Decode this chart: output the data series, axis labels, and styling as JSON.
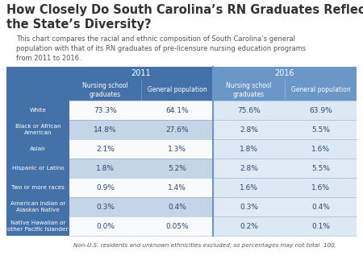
{
  "title": "How Closely Do South Carolina’s RN Graduates Reflect\nthe State’s Diversity?",
  "subtitle": "This chart compares the racial and ethnic composition of South Carolina’s general\npopulation with that of its RN graduates of pre-licensure nursing education programs\nfrom 2011 to 2016.",
  "footnote": "Non-U.S. residents and unknown ethnicities excluded, so percentages may not total  100.",
  "col_headers_year": [
    "2011",
    "2016"
  ],
  "col_headers_sub": [
    "Nursing school\ngraduates",
    "General population",
    "Nursing school\ngraduates",
    "General population"
  ],
  "row_labels": [
    "White",
    "Black or African\nAmerican",
    "Asian",
    "Hispanic or Latino",
    "Two or more races",
    "American Indian or\nAlaskan Native",
    "Native Hawaiian or\nother Pacific Islander"
  ],
  "data": [
    [
      "73.3%",
      "64.1%",
      "75.6%",
      "63.9%"
    ],
    [
      "14.8%",
      "27.6%",
      "2.8%",
      "5.5%"
    ],
    [
      "2.1%",
      "1.3%",
      "1.8%",
      "1.6%"
    ],
    [
      "1.8%",
      "5.2%",
      "2.8%",
      "5.5%"
    ],
    [
      "0.9%",
      "1.4%",
      "1.6%",
      "1.6%"
    ],
    [
      "0.3%",
      "0.4%",
      "0.3%",
      "0.4%"
    ],
    [
      "0.0%",
      "0.05%",
      "0.2%",
      "0.1%"
    ]
  ],
  "color_dark_blue": "#4472a8",
  "color_mid_blue": "#6b96c8",
  "color_light_blue": "#c5d5e8",
  "color_lighter_blue": "#dce8f4",
  "color_cell_odd": "#edf2f8",
  "color_cell_odd_2016": "#e0eaf5",
  "color_white": "#f8fafc",
  "color_header_text": "#ffffff",
  "color_row_label_text": "#ffffff",
  "color_data_text": "#2e4a6e",
  "color_title": "#333333",
  "color_subtitle": "#555555",
  "color_footnote": "#555555",
  "background_color": "#ffffff",
  "table_border_color": "#6b96c8"
}
